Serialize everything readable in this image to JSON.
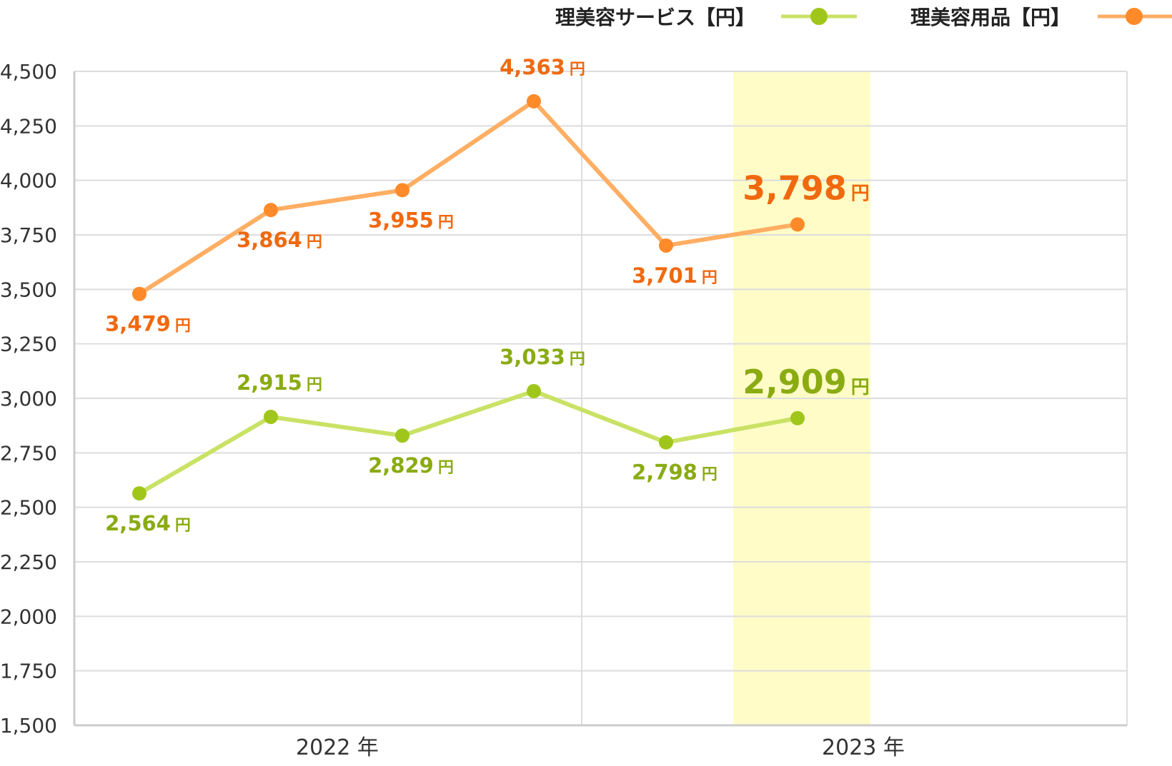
{
  "chart_data": {
    "type": "line",
    "title": "",
    "xlabel": "",
    "ylabel": "",
    "ylim": [
      1500,
      4500
    ],
    "yticks": [
      "1,500",
      "1,750",
      "2,000",
      "2,250",
      "2,500",
      "2,750",
      "3,000",
      "3,250",
      "3,500",
      "3,750",
      "4,000",
      "4,250",
      "4,500"
    ],
    "x_group_labels": [
      "2022 年",
      "2023 年"
    ],
    "grid": true,
    "legend_position": "top-right",
    "highlight_point_index": 5,
    "unit_label": "円",
    "series": [
      {
        "name": "理美容サービス【円】",
        "color": "#c9e265",
        "marker_color": "#a0c61c",
        "label_color": "#8aab12",
        "values": [
          2564,
          2915,
          2829,
          3033,
          2798,
          2909
        ],
        "labels": [
          "2,564",
          "2,915",
          "2,829",
          "3,033",
          "2,798",
          "2,909"
        ],
        "label_positions": [
          "below",
          "above",
          "below",
          "above",
          "below",
          "above"
        ]
      },
      {
        "name": "理美容用品【円】",
        "color": "#ffae63",
        "marker_color": "#ff8a2a",
        "label_color": "#f0690f",
        "values": [
          3479,
          3864,
          3955,
          4363,
          3701,
          3798
        ],
        "labels": [
          "3,479",
          "3,864",
          "3,955",
          "4,363",
          "3,701",
          "3,798"
        ],
        "label_positions": [
          "below",
          "below",
          "below",
          "above",
          "below",
          "above"
        ]
      }
    ]
  }
}
